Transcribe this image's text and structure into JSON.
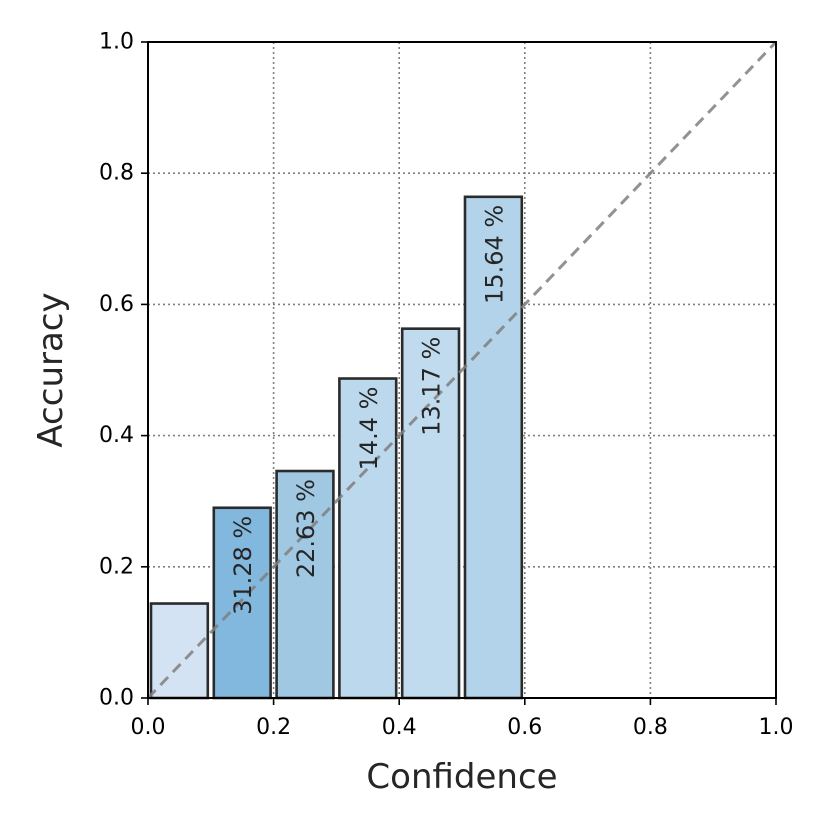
{
  "chart_data": {
    "type": "bar",
    "xlabel": "Confidence",
    "ylabel": "Accuracy",
    "xlim": [
      0.0,
      1.0
    ],
    "ylim": [
      0.0,
      1.0
    ],
    "grid": true,
    "x_ticks": [
      "0.0",
      "0.2",
      "0.4",
      "0.6",
      "0.8",
      "1.0"
    ],
    "y_ticks": [
      "0.0",
      "0.2",
      "0.4",
      "0.6",
      "0.8",
      "1.0"
    ],
    "bins": [
      {
        "x0": 0.0,
        "x1": 0.1,
        "value": 0.144,
        "label": "",
        "color": "#d4e3f3"
      },
      {
        "x0": 0.1,
        "x1": 0.2,
        "value": 0.29,
        "label": "31.28 %",
        "color": "#82b8dd"
      },
      {
        "x0": 0.2,
        "x1": 0.3,
        "value": 0.346,
        "label": "22.63 %",
        "color": "#a0c8e3"
      },
      {
        "x0": 0.3,
        "x1": 0.4,
        "value": 0.487,
        "label": "14.4 %",
        "color": "#bcd8ec"
      },
      {
        "x0": 0.4,
        "x1": 0.5,
        "value": 0.563,
        "label": "13.17 %",
        "color": "#c0daee"
      },
      {
        "x0": 0.5,
        "x1": 0.6,
        "value": 0.764,
        "label": "15.64 %",
        "color": "#b2d3ea"
      },
      {
        "x0": 0.6,
        "x1": 0.7,
        "value": 0.0,
        "label": "",
        "color": "#dbe8f5"
      },
      {
        "x0": 0.7,
        "x1": 0.8,
        "value": 0.0,
        "label": "",
        "color": "#dbe8f5"
      },
      {
        "x0": 0.8,
        "x1": 0.9,
        "value": 0.0,
        "label": "",
        "color": "#dbe8f5"
      },
      {
        "x0": 0.9,
        "x1": 1.0,
        "value": 0.0,
        "label": "",
        "color": "#dbe8f5"
      }
    ],
    "reference_line": {
      "from": [
        0.0,
        0.0
      ],
      "to": [
        1.0,
        1.0
      ],
      "style": "dashed",
      "color": "#7f7f7f"
    }
  }
}
